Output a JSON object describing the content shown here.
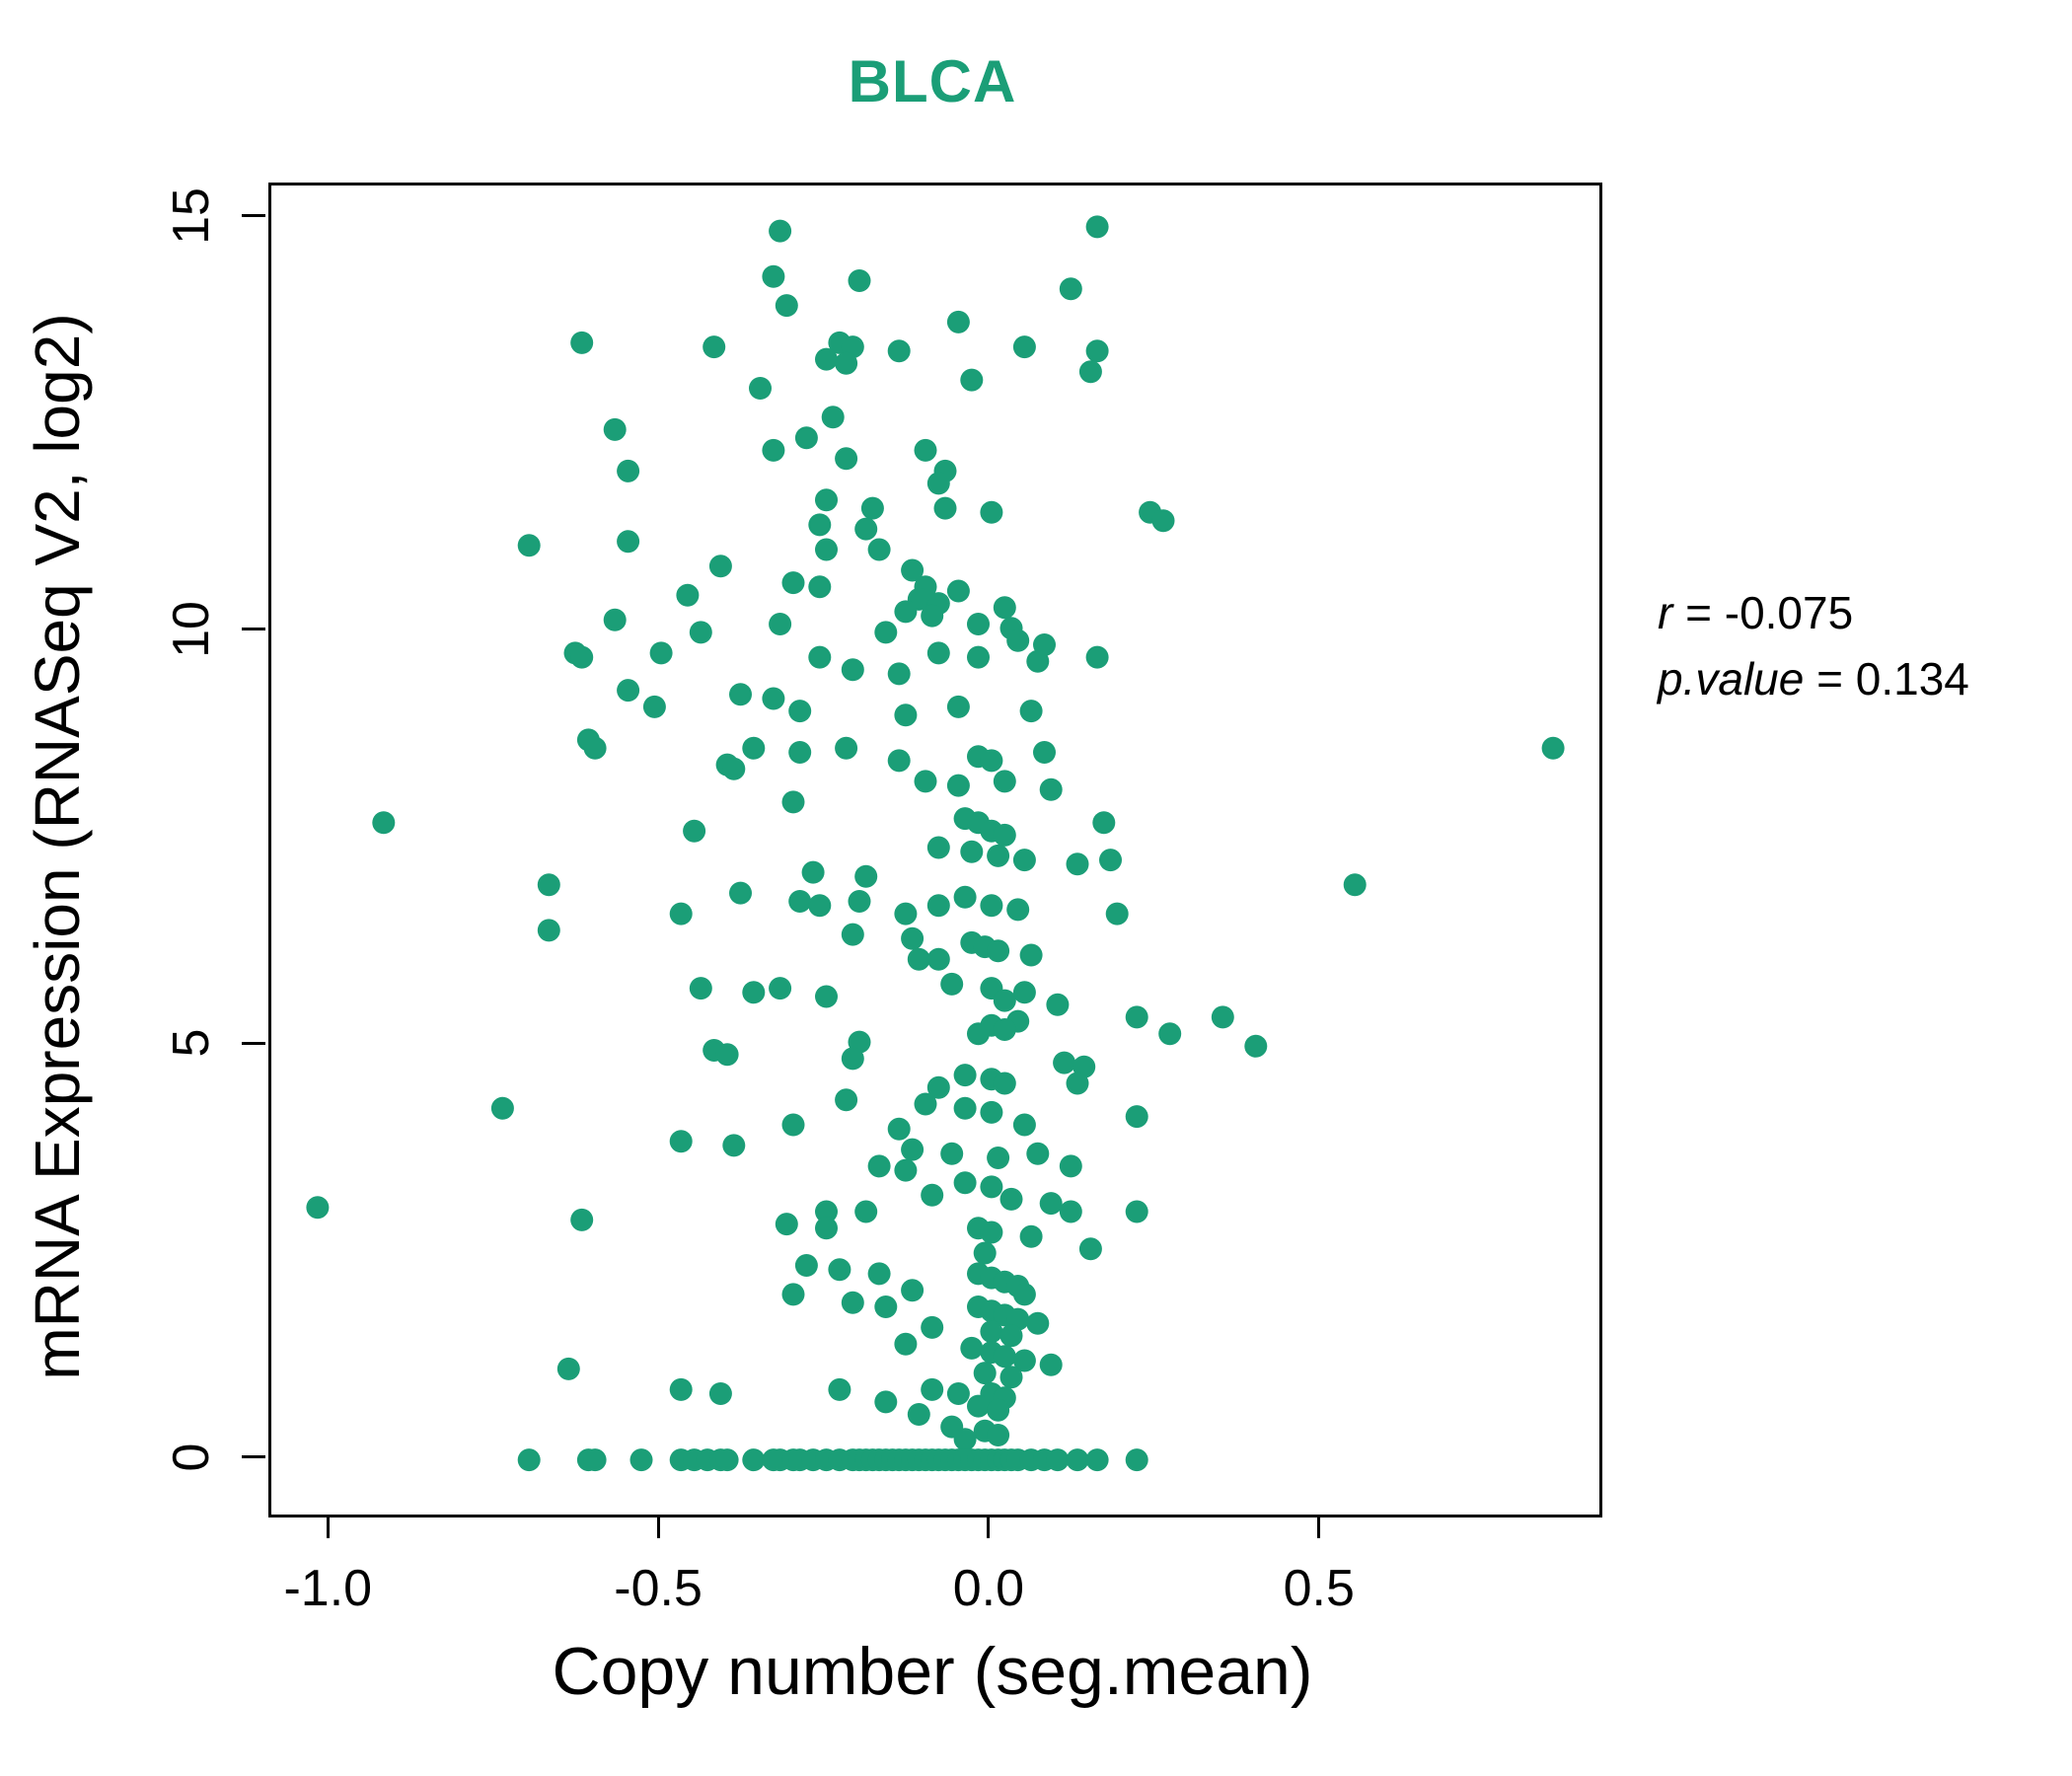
{
  "title": "BLCA",
  "stats": {
    "r_label": "r",
    "r_value": " = -0.075",
    "p_label": "p.value",
    "p_value": " = 0.134"
  },
  "chart_data": {
    "type": "scatter",
    "title": "BLCA",
    "xlabel": "Copy number (seg.mean)",
    "ylabel": "mRNA Expression (RNASeq V2, log2)",
    "xlim": [
      -1.09,
      0.92
    ],
    "ylim": [
      -0.66,
      15.4
    ],
    "x_ticks": [
      -1.0,
      -0.5,
      0.0,
      0.5
    ],
    "y_ticks": [
      0,
      5,
      10,
      15
    ],
    "grid": false,
    "legend": "none",
    "point_color": "#1b9e77",
    "title_color": "#1b9e77",
    "r": -0.075,
    "p_value": 0.134,
    "annotations": [
      "r = -0.075",
      "p.value = 0.134"
    ],
    "points": [
      [
        -0.32,
        14.85
      ],
      [
        0.16,
        14.9
      ],
      [
        -0.33,
        14.3
      ],
      [
        -0.2,
        14.25
      ],
      [
        0.12,
        14.15
      ],
      [
        -0.31,
        13.95
      ],
      [
        -0.05,
        13.75
      ],
      [
        -0.62,
        13.5
      ],
      [
        -0.42,
        13.45
      ],
      [
        -0.23,
        13.5
      ],
      [
        -0.21,
        13.45
      ],
      [
        -0.14,
        13.4
      ],
      [
        0.05,
        13.45
      ],
      [
        0.16,
        13.4
      ],
      [
        -0.25,
        13.3
      ],
      [
        -0.22,
        13.25
      ],
      [
        0.15,
        13.15
      ],
      [
        -0.03,
        13.05
      ],
      [
        -0.35,
        12.95
      ],
      [
        -0.24,
        12.6
      ],
      [
        -0.57,
        12.45
      ],
      [
        -0.28,
        12.35
      ],
      [
        -0.33,
        12.2
      ],
      [
        -0.1,
        12.2
      ],
      [
        -0.22,
        12.1
      ],
      [
        -0.55,
        11.95
      ],
      [
        -0.07,
        11.95
      ],
      [
        -0.08,
        11.8
      ],
      [
        -0.25,
        11.6
      ],
      [
        -0.18,
        11.5
      ],
      [
        -0.07,
        11.5
      ],
      [
        0.0,
        11.45
      ],
      [
        0.24,
        11.45
      ],
      [
        0.26,
        11.35
      ],
      [
        -0.26,
        11.3
      ],
      [
        -0.19,
        11.25
      ],
      [
        -0.55,
        11.1
      ],
      [
        -0.7,
        11.05
      ],
      [
        -0.25,
        11.0
      ],
      [
        -0.17,
        11.0
      ],
      [
        -0.41,
        10.8
      ],
      [
        -0.12,
        10.75
      ],
      [
        -0.3,
        10.6
      ],
      [
        -0.26,
        10.55
      ],
      [
        -0.1,
        10.55
      ],
      [
        -0.05,
        10.5
      ],
      [
        -0.46,
        10.45
      ],
      [
        -0.11,
        10.4
      ],
      [
        -0.08,
        10.35
      ],
      [
        0.02,
        10.3
      ],
      [
        -0.13,
        10.25
      ],
      [
        -0.09,
        10.2
      ],
      [
        -0.57,
        10.15
      ],
      [
        -0.32,
        10.1
      ],
      [
        -0.02,
        10.1
      ],
      [
        0.03,
        10.05
      ],
      [
        -0.44,
        10.0
      ],
      [
        -0.16,
        10.0
      ],
      [
        0.04,
        9.9
      ],
      [
        0.08,
        9.85
      ],
      [
        -0.63,
        9.75
      ],
      [
        -0.62,
        9.7
      ],
      [
        -0.5,
        9.75
      ],
      [
        -0.26,
        9.7
      ],
      [
        -0.08,
        9.75
      ],
      [
        -0.02,
        9.7
      ],
      [
        0.07,
        9.65
      ],
      [
        0.16,
        9.7
      ],
      [
        -0.21,
        9.55
      ],
      [
        -0.14,
        9.5
      ],
      [
        -0.55,
        9.3
      ],
      [
        -0.38,
        9.25
      ],
      [
        -0.33,
        9.2
      ],
      [
        -0.51,
        9.1
      ],
      [
        -0.29,
        9.05
      ],
      [
        -0.13,
        9.0
      ],
      [
        -0.05,
        9.1
      ],
      [
        0.06,
        9.05
      ],
      [
        -0.61,
        8.7
      ],
      [
        -0.6,
        8.6
      ],
      [
        -0.36,
        8.6
      ],
      [
        -0.29,
        8.55
      ],
      [
        -0.22,
        8.6
      ],
      [
        -0.14,
        8.45
      ],
      [
        -0.4,
        8.4
      ],
      [
        -0.39,
        8.35
      ],
      [
        0.85,
        8.6
      ],
      [
        -0.02,
        8.5
      ],
      [
        0.0,
        8.45
      ],
      [
        0.08,
        8.55
      ],
      [
        -0.1,
        8.2
      ],
      [
        -0.05,
        8.15
      ],
      [
        0.02,
        8.2
      ],
      [
        0.09,
        8.1
      ],
      [
        -0.3,
        7.95
      ],
      [
        -0.92,
        7.7
      ],
      [
        -0.45,
        7.6
      ],
      [
        -0.04,
        7.75
      ],
      [
        -0.02,
        7.7
      ],
      [
        0.0,
        7.6
      ],
      [
        0.02,
        7.55
      ],
      [
        0.17,
        7.7
      ],
      [
        -0.08,
        7.4
      ],
      [
        -0.03,
        7.35
      ],
      [
        0.01,
        7.3
      ],
      [
        0.05,
        7.25
      ],
      [
        0.13,
        7.2
      ],
      [
        0.18,
        7.25
      ],
      [
        -0.27,
        7.1
      ],
      [
        -0.19,
        7.05
      ],
      [
        -0.67,
        6.95
      ],
      [
        -0.38,
        6.85
      ],
      [
        -0.29,
        6.75
      ],
      [
        -0.26,
        6.7
      ],
      [
        -0.2,
        6.75
      ],
      [
        -0.08,
        6.7
      ],
      [
        -0.04,
        6.8
      ],
      [
        0.0,
        6.7
      ],
      [
        0.04,
        6.65
      ],
      [
        0.55,
        6.95
      ],
      [
        0.19,
        6.6
      ],
      [
        -0.13,
        6.6
      ],
      [
        -0.47,
        6.6
      ],
      [
        -0.67,
        6.4
      ],
      [
        -0.21,
        6.35
      ],
      [
        -0.12,
        6.3
      ],
      [
        -0.03,
        6.25
      ],
      [
        -0.01,
        6.2
      ],
      [
        0.01,
        6.15
      ],
      [
        0.06,
        6.1
      ],
      [
        -0.11,
        6.05
      ],
      [
        -0.08,
        6.05
      ],
      [
        -0.44,
        5.7
      ],
      [
        -0.36,
        5.65
      ],
      [
        -0.32,
        5.7
      ],
      [
        -0.25,
        5.6
      ],
      [
        -0.06,
        5.75
      ],
      [
        0.0,
        5.7
      ],
      [
        0.05,
        5.65
      ],
      [
        0.02,
        5.55
      ],
      [
        0.1,
        5.5
      ],
      [
        0.35,
        5.35
      ],
      [
        0.04,
        5.3
      ],
      [
        0.0,
        5.25
      ],
      [
        0.02,
        5.2
      ],
      [
        -0.02,
        5.15
      ],
      [
        0.22,
        5.35
      ],
      [
        0.27,
        5.15
      ],
      [
        -0.2,
        5.05
      ],
      [
        0.4,
        5.0
      ],
      [
        -0.42,
        4.95
      ],
      [
        -0.4,
        4.9
      ],
      [
        -0.21,
        4.85
      ],
      [
        0.11,
        4.8
      ],
      [
        0.14,
        4.75
      ],
      [
        -0.04,
        4.65
      ],
      [
        0.0,
        4.6
      ],
      [
        0.02,
        4.55
      ],
      [
        0.13,
        4.55
      ],
      [
        -0.08,
        4.5
      ],
      [
        -0.74,
        4.25
      ],
      [
        -0.22,
        4.35
      ],
      [
        -0.1,
        4.3
      ],
      [
        -0.04,
        4.25
      ],
      [
        0.0,
        4.2
      ],
      [
        0.22,
        4.15
      ],
      [
        -0.3,
        4.05
      ],
      [
        -0.14,
        4.0
      ],
      [
        0.05,
        4.05
      ],
      [
        -0.47,
        3.85
      ],
      [
        -0.39,
        3.8
      ],
      [
        -0.12,
        3.75
      ],
      [
        -0.06,
        3.7
      ],
      [
        0.01,
        3.65
      ],
      [
        0.07,
        3.7
      ],
      [
        -0.17,
        3.55
      ],
      [
        -0.13,
        3.5
      ],
      [
        0.12,
        3.55
      ],
      [
        -0.04,
        3.35
      ],
      [
        0.0,
        3.3
      ],
      [
        -0.09,
        3.2
      ],
      [
        0.03,
        3.15
      ],
      [
        0.09,
        3.1
      ],
      [
        -1.02,
        3.05
      ],
      [
        -0.25,
        3.0
      ],
      [
        -0.19,
        3.0
      ],
      [
        0.12,
        3.0
      ],
      [
        0.22,
        3.0
      ],
      [
        -0.62,
        2.9
      ],
      [
        -0.31,
        2.85
      ],
      [
        -0.25,
        2.8
      ],
      [
        -0.02,
        2.8
      ],
      [
        0.0,
        2.75
      ],
      [
        0.06,
        2.7
      ],
      [
        0.15,
        2.55
      ],
      [
        -0.01,
        2.5
      ],
      [
        -0.28,
        2.35
      ],
      [
        -0.23,
        2.3
      ],
      [
        -0.17,
        2.25
      ],
      [
        -0.02,
        2.25
      ],
      [
        0.0,
        2.2
      ],
      [
        0.02,
        2.15
      ],
      [
        0.04,
        2.1
      ],
      [
        -0.12,
        2.05
      ],
      [
        -0.3,
        2.0
      ],
      [
        0.05,
        2.0
      ],
      [
        -0.21,
        1.9
      ],
      [
        -0.16,
        1.85
      ],
      [
        -0.02,
        1.85
      ],
      [
        0.0,
        1.8
      ],
      [
        0.02,
        1.75
      ],
      [
        0.04,
        1.7
      ],
      [
        0.07,
        1.65
      ],
      [
        -0.09,
        1.6
      ],
      [
        0.0,
        1.55
      ],
      [
        0.03,
        1.5
      ],
      [
        -0.13,
        1.4
      ],
      [
        -0.03,
        1.35
      ],
      [
        0.0,
        1.3
      ],
      [
        0.02,
        1.25
      ],
      [
        0.05,
        1.2
      ],
      [
        0.09,
        1.15
      ],
      [
        -0.64,
        1.1
      ],
      [
        -0.01,
        1.05
      ],
      [
        0.03,
        1.0
      ],
      [
        -0.47,
        0.85
      ],
      [
        -0.41,
        0.8
      ],
      [
        -0.23,
        0.85
      ],
      [
        -0.09,
        0.85
      ],
      [
        -0.05,
        0.8
      ],
      [
        0.0,
        0.8
      ],
      [
        0.02,
        0.75
      ],
      [
        -0.16,
        0.7
      ],
      [
        -0.02,
        0.65
      ],
      [
        0.01,
        0.6
      ],
      [
        -0.11,
        0.55
      ],
      [
        -0.06,
        0.4
      ],
      [
        -0.01,
        0.35
      ],
      [
        0.01,
        0.3
      ],
      [
        -0.04,
        0.25
      ],
      [
        -0.7,
        0
      ],
      [
        -0.61,
        0
      ],
      [
        -0.6,
        0
      ],
      [
        -0.53,
        0
      ],
      [
        -0.47,
        0
      ],
      [
        -0.45,
        0
      ],
      [
        -0.43,
        0
      ],
      [
        -0.41,
        0
      ],
      [
        -0.4,
        0
      ],
      [
        -0.36,
        0
      ],
      [
        -0.33,
        0
      ],
      [
        -0.32,
        0
      ],
      [
        -0.3,
        0
      ],
      [
        -0.29,
        0
      ],
      [
        -0.27,
        0
      ],
      [
        -0.25,
        0
      ],
      [
        -0.23,
        0
      ],
      [
        -0.21,
        0
      ],
      [
        -0.2,
        0
      ],
      [
        -0.19,
        0
      ],
      [
        -0.18,
        0
      ],
      [
        -0.17,
        0
      ],
      [
        -0.16,
        0
      ],
      [
        -0.15,
        0
      ],
      [
        -0.14,
        0
      ],
      [
        -0.13,
        0
      ],
      [
        -0.12,
        0
      ],
      [
        -0.11,
        0
      ],
      [
        -0.1,
        0
      ],
      [
        -0.09,
        0
      ],
      [
        -0.08,
        0
      ],
      [
        -0.07,
        0
      ],
      [
        -0.06,
        0
      ],
      [
        -0.05,
        0
      ],
      [
        -0.04,
        0
      ],
      [
        -0.03,
        0
      ],
      [
        -0.02,
        0
      ],
      [
        -0.01,
        0
      ],
      [
        0.0,
        0
      ],
      [
        0.01,
        0
      ],
      [
        0.02,
        0
      ],
      [
        0.03,
        0
      ],
      [
        0.04,
        0
      ],
      [
        0.06,
        0
      ],
      [
        0.08,
        0
      ],
      [
        0.1,
        0
      ],
      [
        0.13,
        0
      ],
      [
        0.16,
        0
      ],
      [
        0.22,
        0
      ]
    ]
  }
}
